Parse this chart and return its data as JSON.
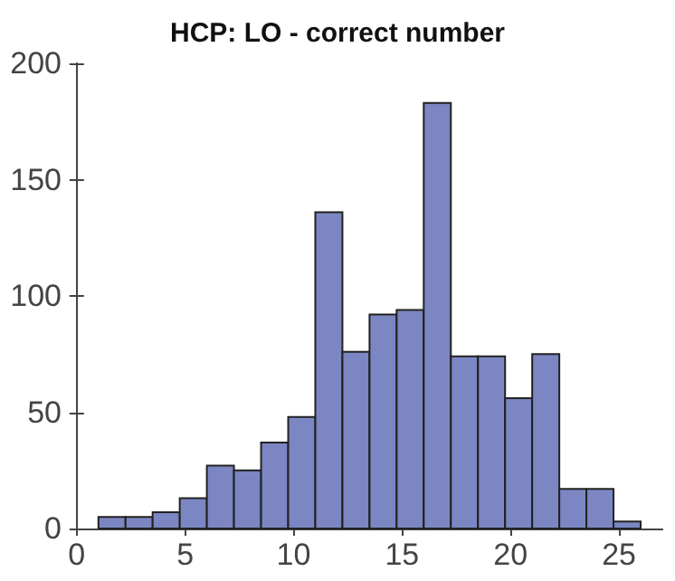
{
  "chart_data": {
    "type": "histogram",
    "title": "HCP: LO - correct number",
    "bins": [
      1,
      2.25,
      3.5,
      4.75,
      6,
      7.25,
      8.5,
      9.75,
      11,
      12.25,
      13.5,
      14.75,
      16,
      17.25,
      18.5,
      19.75,
      21,
      22.25,
      23.5,
      24.75,
      26
    ],
    "values": [
      5,
      5,
      7,
      13,
      27,
      25,
      37,
      48,
      136,
      76,
      92,
      94,
      183,
      74,
      74,
      56,
      75,
      17,
      17,
      3
    ],
    "color": "#7b86c2",
    "xlim": [
      -0.2,
      27
    ],
    "xticks": [
      0,
      5,
      10,
      15,
      20,
      25
    ],
    "ylim": [
      0,
      200
    ],
    "yticks": [
      0,
      50,
      100,
      150,
      200
    ],
    "grid": false
  }
}
